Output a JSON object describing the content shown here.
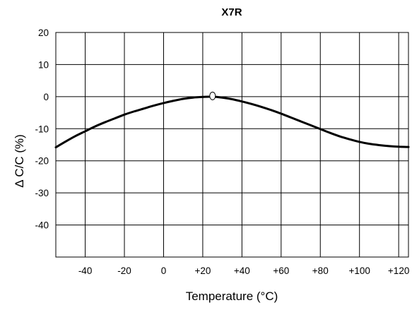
{
  "chart_data": {
    "type": "line",
    "title": "X7R",
    "xlabel": "Temperature (°C)",
    "ylabel": "Δ C/C (%)",
    "xlim": [
      -55,
      125
    ],
    "ylim": [
      -50,
      20
    ],
    "x_ticks": [
      -40,
      -20,
      0,
      20,
      40,
      60,
      80,
      100,
      120
    ],
    "x_tick_labels": [
      "-40",
      "-20",
      "0",
      "+20",
      "+40",
      "+60",
      "+80",
      "+100",
      "+120"
    ],
    "y_ticks": [
      20,
      10,
      0,
      -10,
      -20,
      -30,
      -40
    ],
    "y_tick_labels": [
      "20",
      "10",
      "0",
      "-10",
      "-20",
      "-30",
      "-40"
    ],
    "grid": true,
    "legend": "none",
    "series": [
      {
        "x": [
          -55,
          -50,
          -45,
          -40,
          -35,
          -30,
          -25,
          -20,
          -15,
          -10,
          -5,
          0,
          5,
          10,
          15,
          20,
          25,
          30,
          35,
          40,
          45,
          50,
          55,
          60,
          65,
          70,
          75,
          80,
          85,
          90,
          95,
          100,
          105,
          110,
          115,
          120,
          125
        ],
        "y": [
          -15.8,
          -14.0,
          -12.3,
          -10.8,
          -9.3,
          -8.0,
          -6.8,
          -5.6,
          -4.6,
          -3.7,
          -2.8,
          -2.0,
          -1.3,
          -0.7,
          -0.3,
          -0.1,
          0.0,
          -0.3,
          -0.8,
          -1.5,
          -2.3,
          -3.2,
          -4.2,
          -5.3,
          -6.5,
          -7.7,
          -8.9,
          -10.1,
          -11.3,
          -12.4,
          -13.3,
          -14.1,
          -14.7,
          -15.1,
          -15.4,
          -15.6,
          -15.7
        ]
      }
    ],
    "annotations": [
      {
        "type": "open-circle-marker",
        "x": 25,
        "y": 0
      }
    ]
  },
  "colors": {
    "line": "#000000",
    "grid": "#000000",
    "background": "#ffffff"
  }
}
